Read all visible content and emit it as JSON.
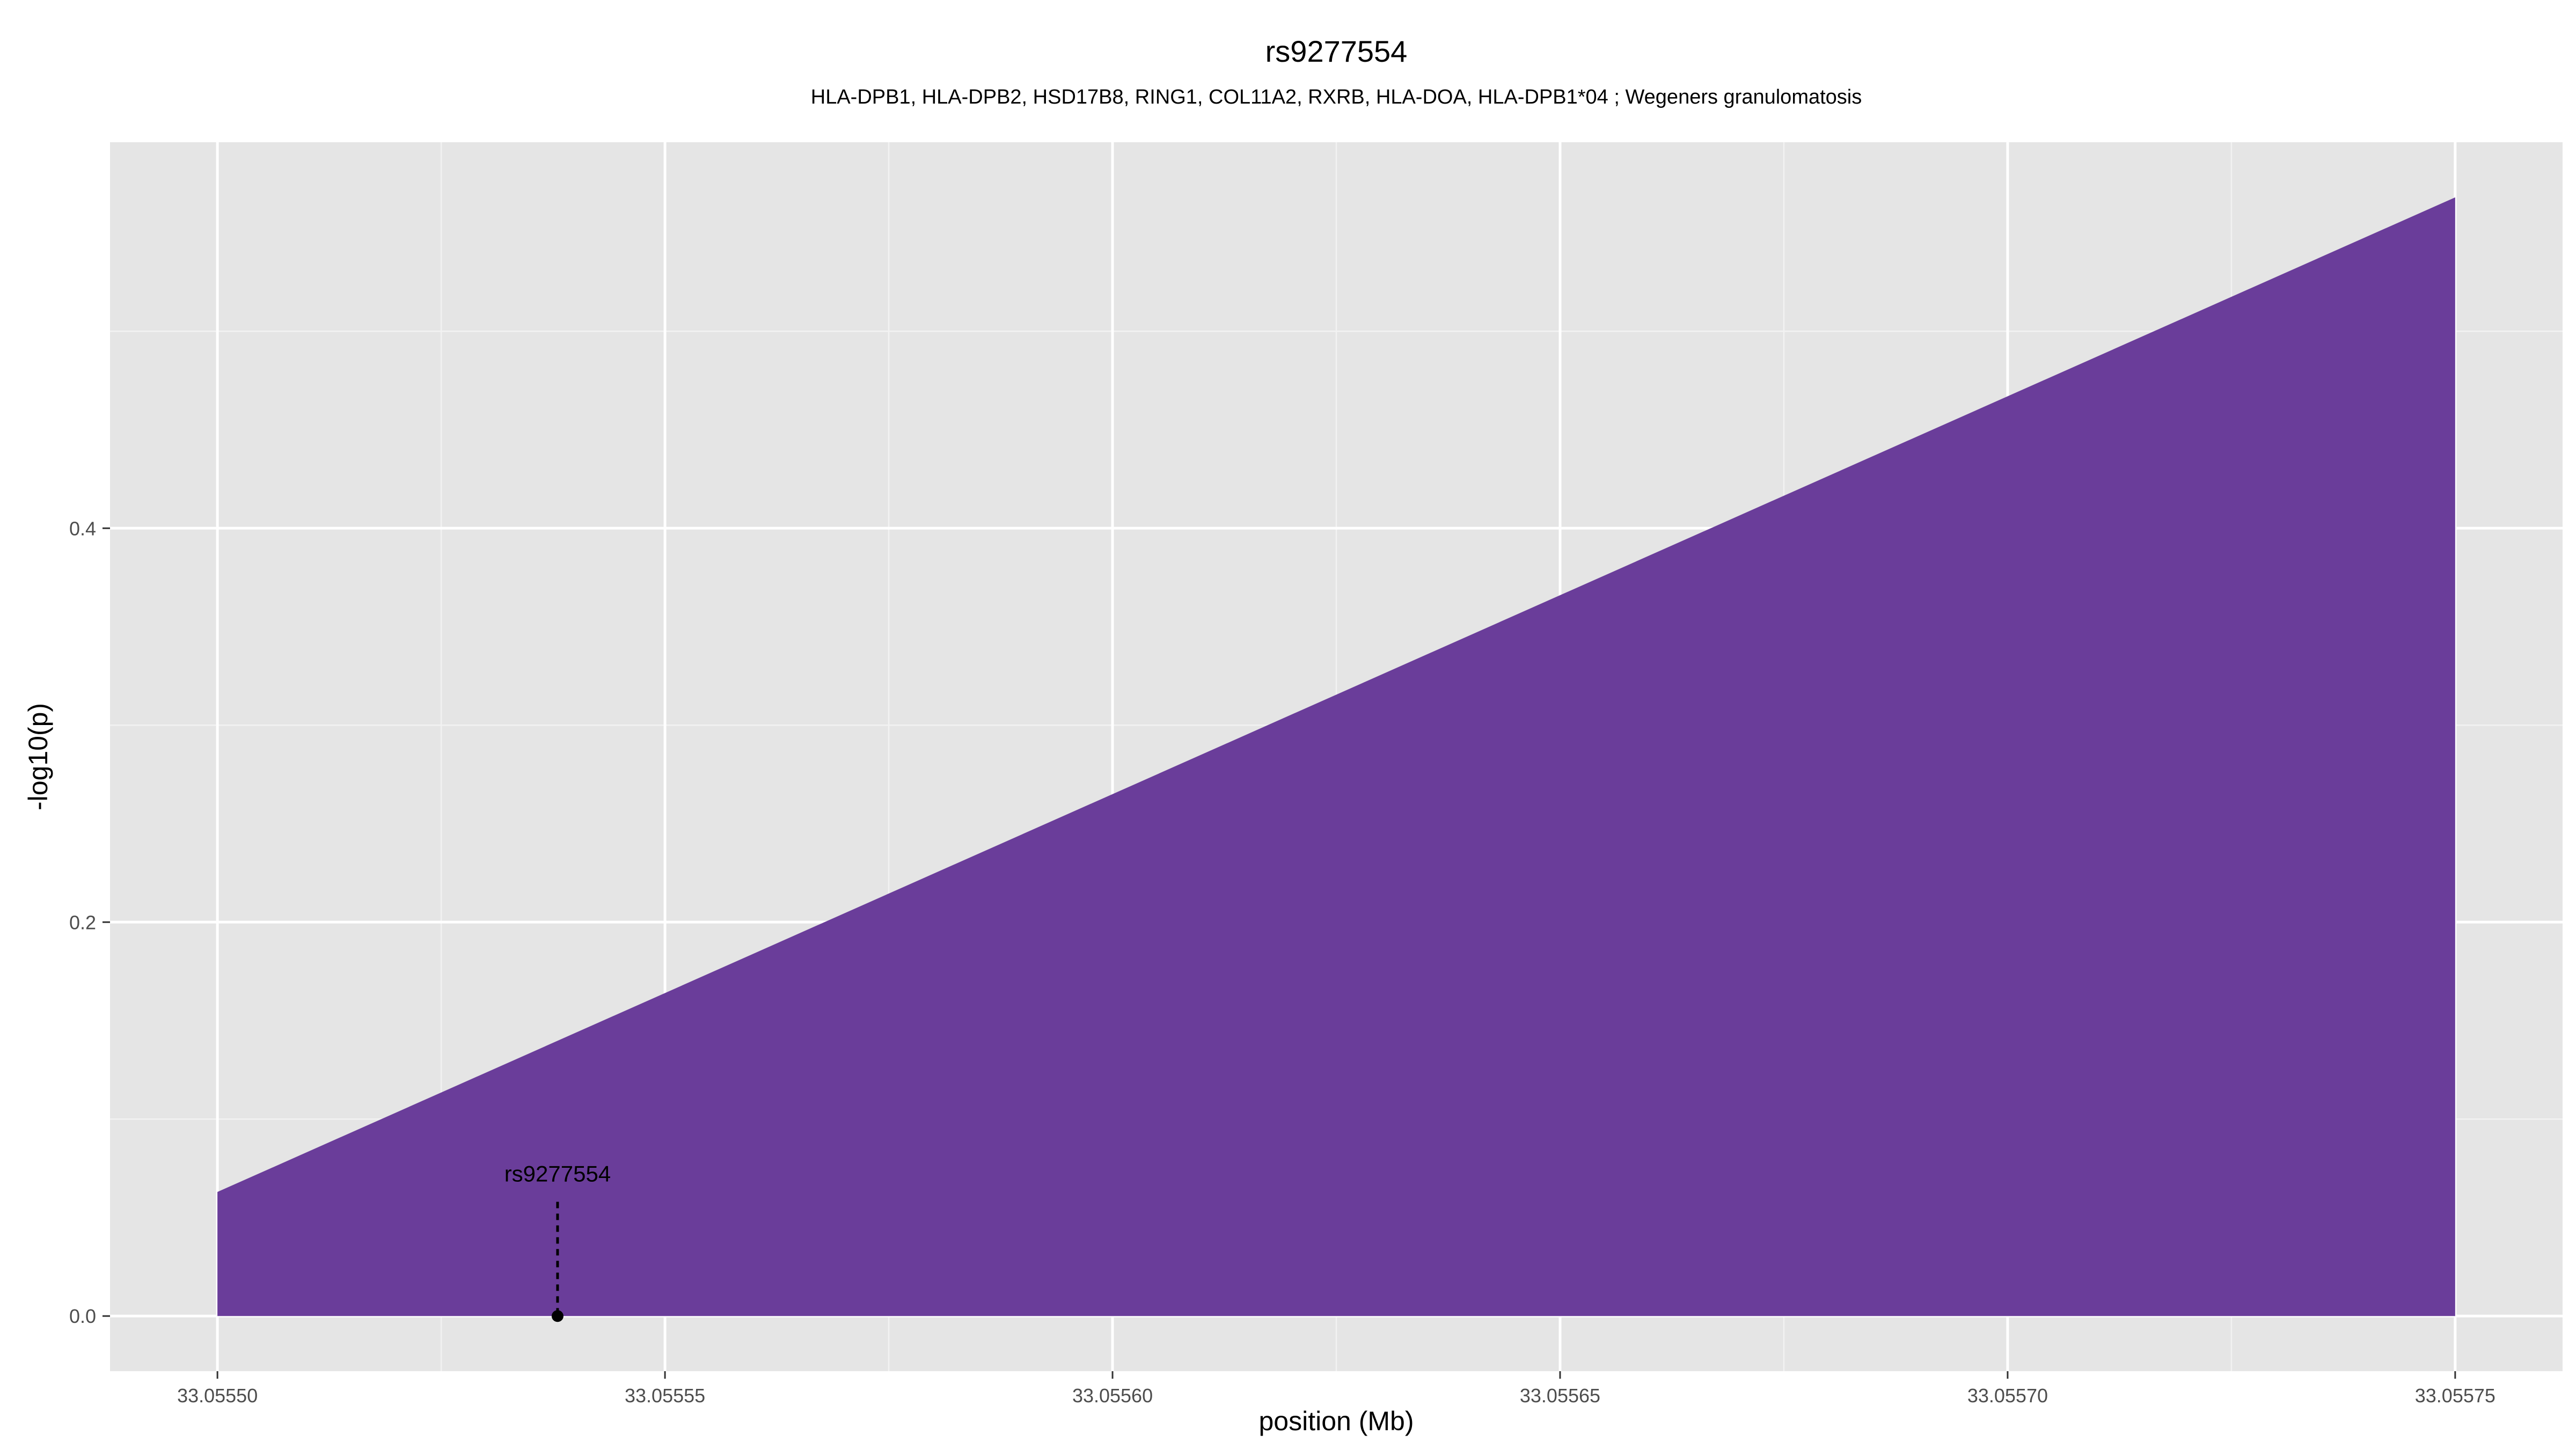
{
  "chart_data": {
    "type": "area",
    "title": "rs9277554",
    "subtitle": "HLA-DPB1, HLA-DPB2, HSD17B8, RING1, COL11A2, RXRB, HLA-DOA, HLA-DPB1*04 ; Wegeners granulomatosis",
    "xlabel": "position (Mb)",
    "ylabel": "-log10(p)",
    "xlim": [
      33.055488,
      33.055762
    ],
    "ylim": [
      -0.028,
      0.596
    ],
    "x_ticks": [
      33.0555,
      33.05555,
      33.0556,
      33.05565,
      33.0557,
      33.05575
    ],
    "x_tick_labels": [
      "33.05550",
      "33.05555",
      "33.05560",
      "33.05565",
      "33.05570",
      "33.05575"
    ],
    "x_minor_ticks": [
      33.055525,
      33.055575,
      33.055625,
      33.055675,
      33.055725
    ],
    "y_ticks": [
      0.0,
      0.2,
      0.4
    ],
    "y_tick_labels": [
      "0.0",
      "0.2",
      "0.4"
    ],
    "y_minor_ticks": [
      0.1,
      0.3,
      0.5
    ],
    "grid": true,
    "series": [
      {
        "x": [
          33.0555,
          33.05575
        ],
        "y": [
          0.063,
          0.568
        ],
        "color": "#6a3d9a"
      }
    ],
    "annotations": [
      {
        "label": "rs9277554",
        "x": 33.055538,
        "y": 0.0,
        "line_top": 0.058
      }
    ]
  }
}
